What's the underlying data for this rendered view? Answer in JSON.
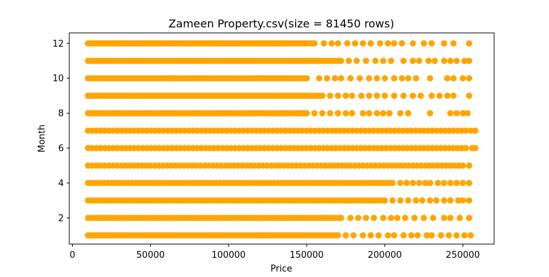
{
  "chart_data": {
    "type": "scatter",
    "title": "Zameen Property.csv(size = 81450 rows)",
    "xlabel": "Price",
    "ylabel": "Month",
    "xlim": [
      -2000,
      270000
    ],
    "ylim": [
      0.5,
      12.6
    ],
    "xticks": [
      0,
      50000,
      100000,
      150000,
      200000,
      250000
    ],
    "xtick_labels": [
      "0",
      "50000",
      "100000",
      "150000",
      "200000",
      "250000"
    ],
    "yticks": [
      2,
      4,
      6,
      8,
      10,
      12
    ],
    "ytick_labels": [
      "2",
      "4",
      "6",
      "8",
      "10",
      "12"
    ],
    "grid": false,
    "legend": "none",
    "marker_color": "#ffa500",
    "series": [
      {
        "points_by_month": [
          {
            "month": 1,
            "dense_range": [
              10000,
              170000
            ],
            "sparse_x": [
              175000,
              180000,
              186000,
              191000,
              196000,
              202000,
              206000,
              212000,
              217000,
              221000,
              227000,
              230000,
              236000,
              241000,
              246000,
              251000,
              255000
            ]
          },
          {
            "month": 2,
            "dense_range": [
              10000,
              172000
            ],
            "sparse_x": [
              178000,
              183000,
              188000,
              193000,
              199000,
              204000,
              208000,
              213000,
              219000,
              225000,
              231000,
              238000,
              242000,
              248000,
              254000
            ]
          },
          {
            "month": 3,
            "dense_range": [
              10000,
              200000
            ],
            "sparse_x": [
              205000,
              210000,
              215000,
              220000,
              224000,
              229000,
              233000,
              238000,
              242000,
              247000,
              250000,
              254000
            ]
          },
          {
            "month": 4,
            "dense_range": [
              10000,
              205000
            ],
            "sparse_x": [
              210000,
              214000,
              218000,
              222000,
              226000,
              229000,
              234000,
              238000,
              242000,
              246000,
              250000,
              254000
            ]
          },
          {
            "month": 5,
            "dense_range": [
              10000,
              250000
            ],
            "sparse_x": [
              254000
            ]
          },
          {
            "month": 6,
            "dense_range": [
              10000,
              252000
            ],
            "sparse_x": [
              256000,
              258000
            ]
          },
          {
            "month": 7,
            "dense_range": [
              10000,
              252000
            ],
            "sparse_x": [
              255000,
              258000
            ]
          },
          {
            "month": 8,
            "dense_range": [
              10000,
              150000
            ],
            "sparse_x": [
              155000,
              160000,
              165000,
              170000,
              175000,
              179000,
              186000,
              190000,
              195000,
              199000,
              203000,
              210000,
              215000,
              229000,
              242000,
              246000,
              250000,
              253000
            ]
          },
          {
            "month": 9,
            "dense_range": [
              10000,
              160000
            ],
            "sparse_x": [
              165000,
              170000,
              175000,
              179000,
              185000,
              190000,
              195000,
              200000,
              206000,
              212000,
              218000,
              223000,
              230000,
              235000,
              240000,
              244000,
              254000
            ]
          },
          {
            "month": 10,
            "dense_range": [
              10000,
              150000
            ],
            "sparse_x": [
              158000,
              163000,
              168000,
              172000,
              178000,
              184000,
              190000,
              195000,
              200000,
              206000,
              211000,
              215000,
              220000,
              229000,
              240000,
              244000,
              250000,
              254000
            ]
          },
          {
            "month": 11,
            "dense_range": [
              10000,
              172000
            ],
            "sparse_x": [
              177000,
              182000,
              188000,
              194000,
              199000,
              204000,
              212000,
              218000,
              222000,
              228000,
              232000,
              238000,
              242000,
              246000,
              251000,
              254000
            ]
          },
          {
            "month": 12,
            "dense_range": [
              10000,
              155000
            ],
            "sparse_x": [
              161000,
              166000,
              170000,
              176000,
              181000,
              186000,
              191000,
              197000,
              202000,
              206000,
              211000,
              218000,
              225000,
              230000,
              238000,
              244000,
              254000
            ]
          }
        ]
      }
    ]
  }
}
